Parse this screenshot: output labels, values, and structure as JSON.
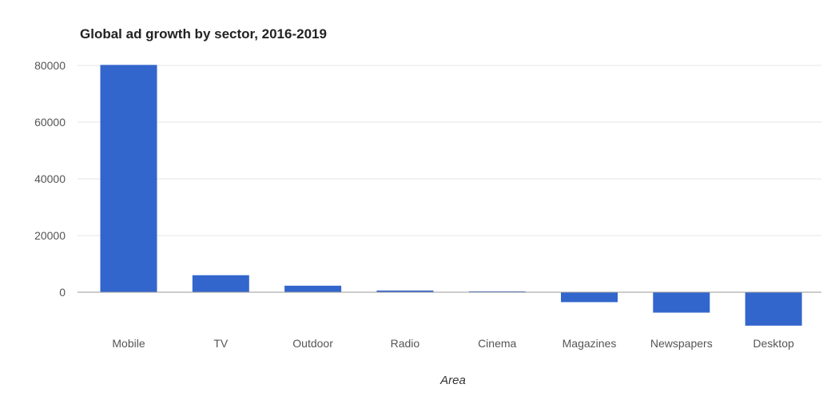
{
  "chart_data": {
    "type": "bar",
    "title": "Global ad growth by sector, 2016-2019",
    "xlabel": "Area",
    "ylabel": "",
    "categories": [
      "Mobile",
      "TV",
      "Outdoor",
      "Radio",
      "Cinema",
      "Magazines",
      "Newspapers",
      "Desktop"
    ],
    "values": [
      80200,
      6000,
      2300,
      600,
      300,
      -3500,
      -7200,
      -11800
    ],
    "ylim": [
      -15000,
      80000
    ],
    "yticks": [
      0,
      20000,
      40000,
      60000,
      80000
    ],
    "ytick_labels": [
      "0",
      "20000",
      "40000",
      "60000",
      "80000"
    ],
    "grid": true,
    "legend": "none",
    "bar_color": "#3366cc",
    "grid_color": "#e4e4e4",
    "baseline_color": "#999999"
  }
}
